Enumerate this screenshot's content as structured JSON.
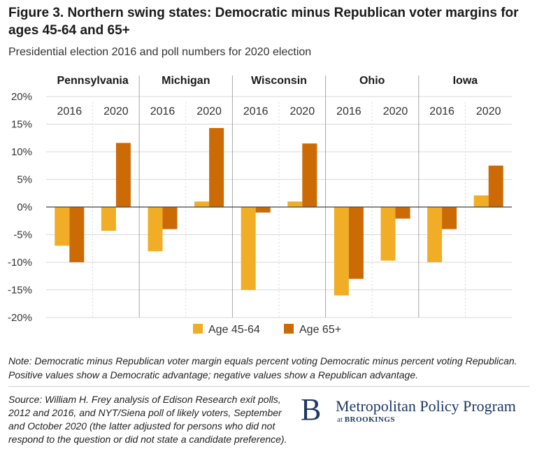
{
  "header": {
    "title": "Figure 3. Northern swing states: Democratic minus Republican voter margins for ages 45-64 and 65+",
    "subtitle": "Presidential election 2016 and poll numbers for 2020 election"
  },
  "chart_data": {
    "type": "bar",
    "title": "Figure 3. Northern swing states: Democratic minus Republican voter margins for ages 45-64 and 65+",
    "subtitle": "Presidential election 2016 and poll numbers for 2020 election",
    "ylim": [
      -20,
      20
    ],
    "yticks": [
      20,
      15,
      10,
      5,
      0,
      -5,
      -10,
      -15,
      -20
    ],
    "ytick_labels": [
      "20%",
      "15%",
      "10%",
      "5%",
      "0%",
      "-5%",
      "-10%",
      "-15%",
      "-20%"
    ],
    "xlabel": "",
    "ylabel": "",
    "grid": true,
    "legend_position": "bottom",
    "colors": {
      "Age 45-64": "#f0ad25",
      "Age 65+": "#cc6a06",
      "grid": "#d9d9d9",
      "divider": "#a6a6a6"
    },
    "groups": [
      {
        "state": "Pennsylvania",
        "years": [
          "2016",
          "2020"
        ]
      },
      {
        "state": "Michigan",
        "years": [
          "2016",
          "2020"
        ]
      },
      {
        "state": "Wisconsin",
        "years": [
          "2016",
          "2020"
        ]
      },
      {
        "state": "Ohio",
        "years": [
          "2016",
          "2020"
        ]
      },
      {
        "state": "Iowa",
        "years": [
          "2016",
          "2020"
        ]
      }
    ],
    "series": [
      {
        "name": "Age 45-64",
        "values": [
          -7,
          -4.3,
          -8,
          1,
          -15,
          1,
          -16,
          -9.7,
          -10,
          2.1
        ]
      },
      {
        "name": "Age 65+",
        "values": [
          -10,
          11.6,
          -4,
          14.3,
          -1,
          11.5,
          -13,
          -2.1,
          -4,
          7.5
        ]
      }
    ]
  },
  "note": "Note: Democratic minus Republican voter margin equals percent voting Democratic minus percent voting Republican. Positive values show a Democratic advantage; negative values show a Republican advantage.",
  "source": "Source: William H. Frey analysis of Edison Research exit polls, 2012 and 2016, and NYT/Siena poll of likely voters, September and October 2020 (the latter adjusted for persons who did not respond to the question or did not state a candidate preference).",
  "brand": {
    "logo_letter": "B",
    "name": "Metropolitan Policy Program",
    "sub_prefix": "at",
    "sub_org": "BROOKINGS"
  }
}
